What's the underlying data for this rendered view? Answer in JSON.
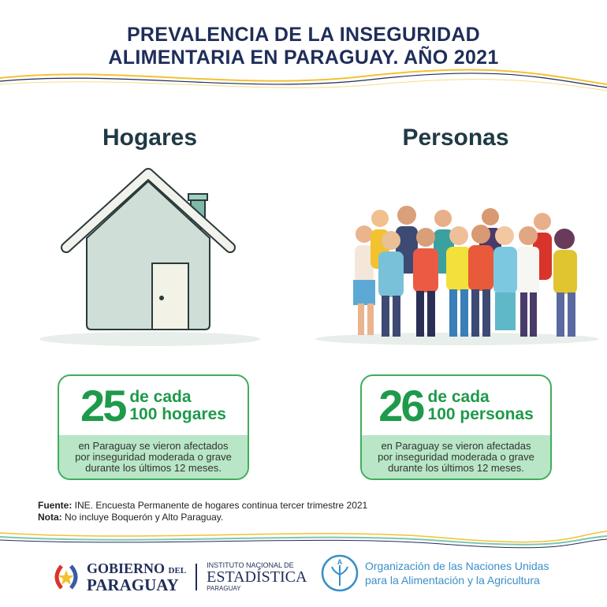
{
  "title": {
    "line1": "PREVALENCIA DE LA INSEGURIDAD",
    "line2": "ALIMENTARIA EN PARAGUAY. AÑO 2021"
  },
  "sections": [
    {
      "heading": "Hogares",
      "number": "25",
      "line1": "de cada",
      "line2_num": "100",
      "line2_unit": "hogares",
      "desc1": "en Paraguay se vieron afectados",
      "desc2": "por inseguridad moderada o grave",
      "desc3": "durante los últimos 12 meses."
    },
    {
      "heading": "Personas",
      "number": "26",
      "line1": "de cada",
      "line2_num": "100",
      "line2_unit": "personas",
      "desc1": "en Paraguay se vieron afectadas",
      "desc2": "por inseguridad moderada o grave",
      "desc3": "durante los últimos 12 meses."
    }
  ],
  "notes": {
    "source_label": "Fuente:",
    "source_text": " INE. Encuesta Permanente de hogares continua tercer trimestre 2021",
    "note_label": "Nota:",
    "note_text": " No incluye Boquerón y Alto Paraguay."
  },
  "logos": {
    "gob_line1": "GOBIERNO",
    "gob_del": "DEL",
    "gob_line2": "PARAGUAY",
    "ine_top": "INSTITUTO NACIONAL DE",
    "ine_main": "ESTADÍSTICA",
    "ine_bottom": "PARAGUAY",
    "fao_letters": "FAO",
    "fao_line1": "Organización de las Naciones Unidas",
    "fao_line2": "para la Alimentación y la Agricultura"
  },
  "colors": {
    "navy": "#1f2d5a",
    "green": "#1e9a4a",
    "light_green": "#b8e6c6",
    "yellow": "#f2c230",
    "fao_blue": "#3a8fc8"
  }
}
